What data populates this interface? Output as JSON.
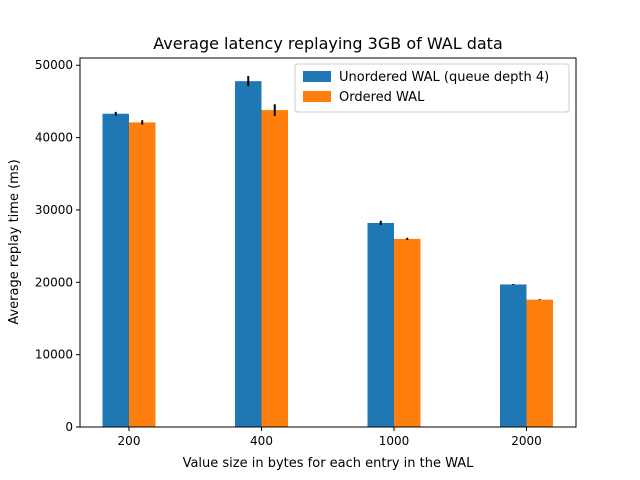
{
  "chart_data": {
    "type": "bar",
    "title": "Average latency replaying 3GB of WAL data",
    "xlabel": "Value size in bytes for each entry in the WAL",
    "ylabel": "Average replay time (ms)",
    "categories": [
      "200",
      "400",
      "1000",
      "2000"
    ],
    "ylim": [
      0,
      51000
    ],
    "yticks": [
      0,
      10000,
      20000,
      30000,
      40000,
      50000
    ],
    "grid": false,
    "legend_position": "top-right",
    "series": [
      {
        "name": "Unordered WAL (queue depth 4)",
        "color": "#1f77b4",
        "values": [
          43300,
          47800,
          28200,
          19700
        ],
        "errors": [
          250,
          700,
          300,
          60
        ]
      },
      {
        "name": "Ordered WAL",
        "color": "#ff7f0e",
        "values": [
          42100,
          43800,
          26000,
          17600
        ],
        "errors": [
          300,
          800,
          150,
          60
        ]
      }
    ]
  }
}
